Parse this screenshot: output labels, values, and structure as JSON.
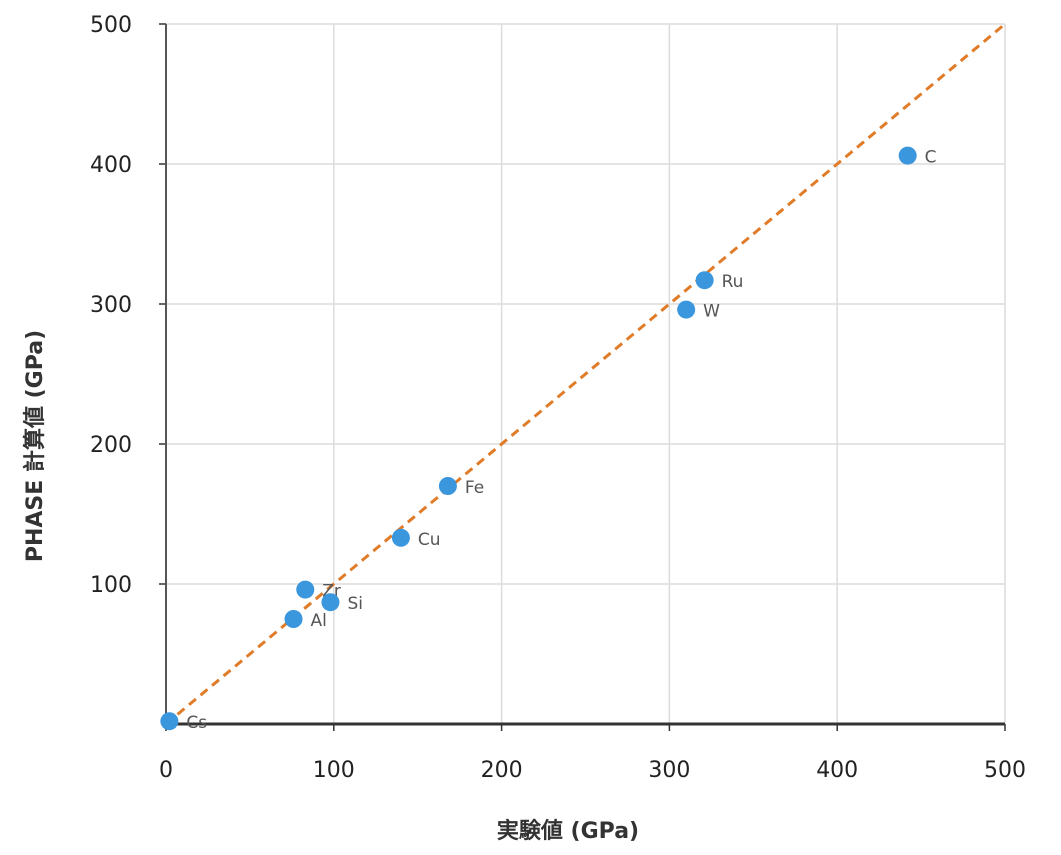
{
  "chart_data": {
    "type": "scatter",
    "xlabel": "実験値 (GPa)",
    "ylabel": "PHASE 計算値 (GPa)",
    "xlim": [
      0,
      500
    ],
    "ylim": [
      0,
      500
    ],
    "xticks": [
      "0",
      "100",
      "200",
      "300",
      "400",
      "500"
    ],
    "yticks": [
      "100",
      "200",
      "300",
      "400",
      "500"
    ],
    "grid": true,
    "colors": {
      "point": "#3a96dd",
      "reference_line": "#e07b28",
      "grid": "#dcdcdc",
      "axis": "#333333"
    },
    "reference_line": {
      "style": "dashed",
      "from": [
        0,
        0
      ],
      "to": [
        500,
        500
      ]
    },
    "points": [
      {
        "label": "Cs",
        "x": 2,
        "y": 2
      },
      {
        "label": "Al",
        "x": 76,
        "y": 75
      },
      {
        "label": "Zr",
        "x": 83,
        "y": 96
      },
      {
        "label": "Si",
        "x": 98,
        "y": 87
      },
      {
        "label": "Cu",
        "x": 140,
        "y": 133
      },
      {
        "label": "Fe",
        "x": 168,
        "y": 170
      },
      {
        "label": "W",
        "x": 310,
        "y": 296
      },
      {
        "label": "Ru",
        "x": 321,
        "y": 317
      },
      {
        "label": "C",
        "x": 442,
        "y": 406
      }
    ]
  }
}
